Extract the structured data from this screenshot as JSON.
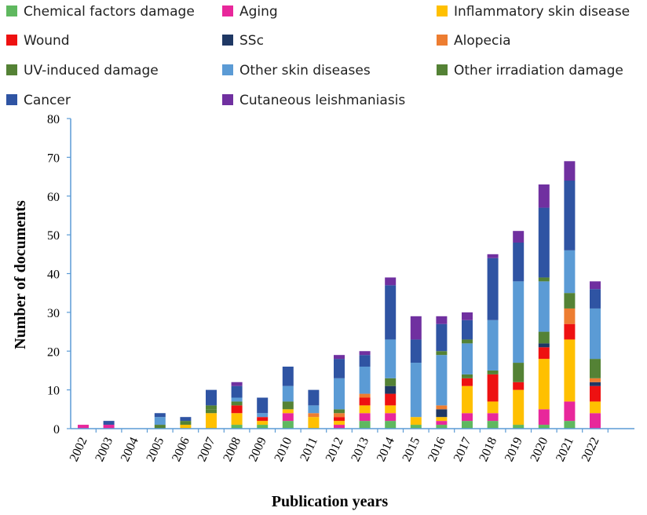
{
  "chart_data": {
    "type": "bar",
    "stacked": true,
    "title": "",
    "xlabel": "Publication years",
    "ylabel": "Number of documents",
    "ylim": [
      0,
      80
    ],
    "yticks": [
      0,
      10,
      20,
      30,
      40,
      50,
      60,
      70,
      80
    ],
    "categories": [
      "2002",
      "2003",
      "2004",
      "2005",
      "2006",
      "2007",
      "2008",
      "2009",
      "2010",
      "2011",
      "2012",
      "2013",
      "2014",
      "2015",
      "2016",
      "2017",
      "2018",
      "2019",
      "2020",
      "2021",
      "2022"
    ],
    "series": [
      {
        "name": "Chemical factors damage",
        "color": "#5fb85f",
        "values": [
          0,
          0,
          0,
          0,
          0,
          0,
          1,
          1,
          2,
          0,
          0,
          2,
          2,
          1,
          1,
          2,
          2,
          1,
          1,
          2,
          0
        ]
      },
      {
        "name": "Aging",
        "color": "#e8279b",
        "values": [
          1,
          1,
          0,
          0,
          0,
          0,
          0,
          0,
          2,
          0,
          1,
          2,
          2,
          0,
          1,
          2,
          2,
          0,
          4,
          5,
          4
        ]
      },
      {
        "name": "Inflammatory skin disease",
        "color": "#ffc000",
        "values": [
          0,
          0,
          0,
          0,
          1,
          4,
          3,
          1,
          1,
          3,
          1,
          2,
          2,
          2,
          1,
          7,
          3,
          9,
          13,
          16,
          3
        ]
      },
      {
        "name": "Wound",
        "color": "#ee1111",
        "values": [
          0,
          0,
          0,
          0,
          0,
          0,
          2,
          1,
          0,
          0,
          1,
          2,
          3,
          0,
          0,
          2,
          7,
          2,
          3,
          4,
          4
        ]
      },
      {
        "name": "SSc",
        "color": "#1f3864",
        "values": [
          0,
          0,
          0,
          0,
          0,
          0,
          0,
          0,
          0,
          0,
          0,
          0,
          2,
          0,
          2,
          0,
          0,
          0,
          1,
          0,
          1
        ]
      },
      {
        "name": "Alopecia",
        "color": "#ed7d31",
        "values": [
          0,
          0,
          0,
          0,
          0,
          0,
          0,
          0,
          0,
          1,
          1,
          1,
          0,
          0,
          1,
          0,
          0,
          0,
          0,
          4,
          1
        ]
      },
      {
        "name": "UV-induced damage",
        "color": "#548235",
        "values": [
          0,
          0,
          0,
          1,
          1,
          1,
          1,
          0,
          2,
          0,
          1,
          0,
          2,
          0,
          0,
          1,
          1,
          5,
          3,
          4,
          5
        ]
      },
      {
        "name": "Other skin diseases",
        "color": "#5b9bd5",
        "values": [
          0,
          0,
          0,
          2,
          0,
          0,
          1,
          1,
          4,
          2,
          8,
          7,
          10,
          14,
          13,
          8,
          13,
          21,
          13,
          11,
          13
        ]
      },
      {
        "name": "Other irradiation damage",
        "color": "#548235",
        "values": [
          0,
          0,
          0,
          0,
          0,
          1,
          0,
          0,
          0,
          0,
          0,
          0,
          0,
          0,
          1,
          1,
          0,
          0,
          1,
          0,
          0
        ]
      },
      {
        "name": "Cancer",
        "color": "#2f54a3",
        "values": [
          0,
          1,
          0,
          1,
          1,
          4,
          3,
          4,
          5,
          4,
          5,
          3,
          14,
          6,
          7,
          5,
          16,
          10,
          18,
          18,
          5
        ]
      },
      {
        "name": "Cutaneous leishmaniasis",
        "color": "#7030a0",
        "values": [
          0,
          0,
          0,
          0,
          0,
          0,
          1,
          0,
          0,
          0,
          1,
          1,
          2,
          6,
          2,
          2,
          1,
          3,
          6,
          5,
          2
        ]
      }
    ]
  }
}
